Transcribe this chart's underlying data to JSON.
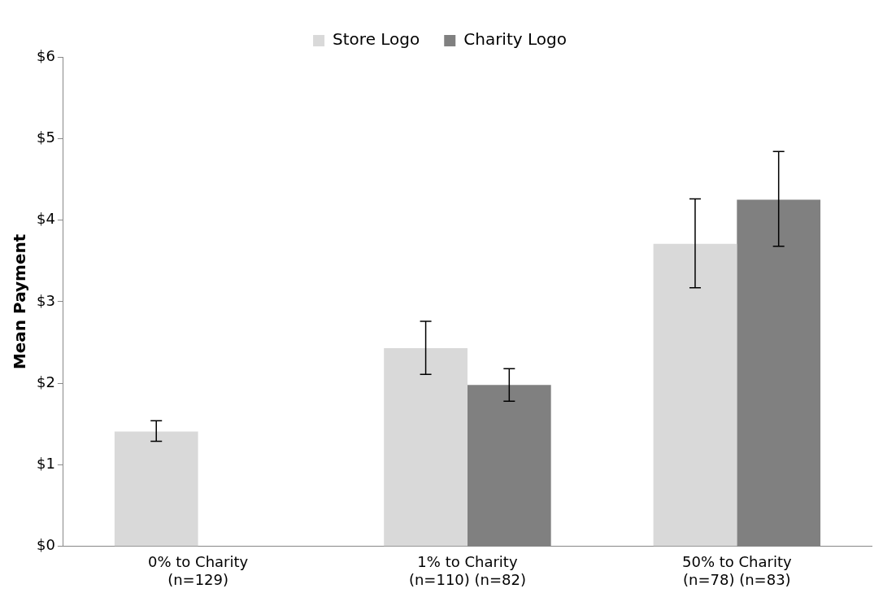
{
  "chart_data": {
    "type": "bar",
    "ylabel": "Mean Payment",
    "categories": [
      "0% to Charity\n(n=129)",
      "1% to Charity\n(n=110) (n=82)",
      "50% to Charity\n(n=78) (n=83)"
    ],
    "series": [
      {
        "name": "Store Logo",
        "color": "#d9d9d9",
        "values": [
          1.41,
          2.43,
          3.71
        ],
        "errors": [
          [
            1.29,
            1.54
          ],
          [
            2.11,
            2.76
          ],
          [
            3.17,
            4.26
          ]
        ]
      },
      {
        "name": "Charity Logo",
        "color": "#808080",
        "values": [
          null,
          1.98,
          4.25
        ],
        "errors": [
          null,
          [
            1.78,
            2.18
          ],
          [
            3.68,
            4.84
          ]
        ]
      }
    ],
    "ylim": [
      0,
      6
    ],
    "yticks": [
      {
        "value": 0,
        "label": "$0"
      },
      {
        "value": 1,
        "label": "$1"
      },
      {
        "value": 2,
        "label": "$2"
      },
      {
        "value": 3,
        "label": "$3"
      },
      {
        "value": 4,
        "label": "$4"
      },
      {
        "value": 5,
        "label": "$5"
      },
      {
        "value": 6,
        "label": "$6"
      }
    ],
    "grid": false,
    "legend": "top"
  }
}
